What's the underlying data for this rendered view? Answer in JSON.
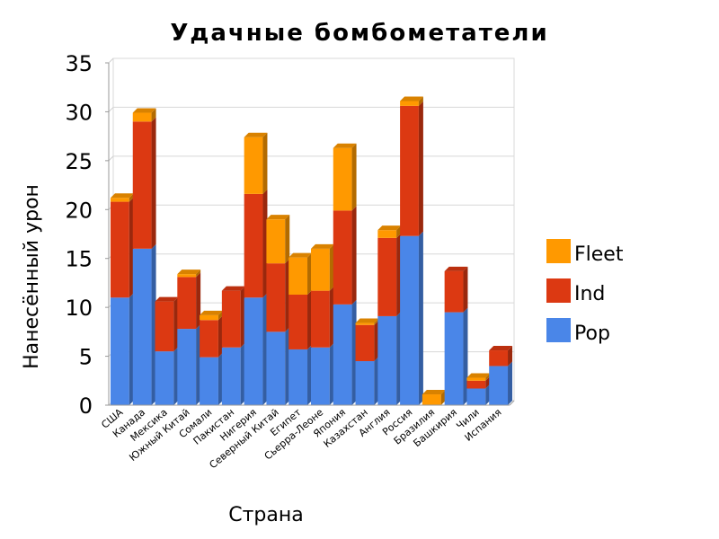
{
  "chart_data": {
    "type": "bar",
    "stacked": true,
    "title": "Удачные бомбометатели",
    "xlabel": "Страна",
    "ylabel": "Нанесённый урон",
    "ylim": [
      0,
      35
    ],
    "yticks": [
      0,
      5,
      10,
      15,
      20,
      25,
      30,
      35
    ],
    "grid": true,
    "legend_position": "right",
    "categories": [
      "США",
      "Канада",
      "Мексика",
      "Южный Китай",
      "Сомали",
      "Пакистан",
      "Нигерия",
      "Северный Китай",
      "Египет",
      "Сьерра-Леоне",
      "Япония",
      "Казахстан",
      "Англия",
      "Россия",
      "Бразилия",
      "Башкирия",
      "Чили",
      "Испания"
    ],
    "series": [
      {
        "name": "Pop",
        "color": "#4a86e8",
        "values": [
          11,
          16,
          5.5,
          7.8,
          4.9,
          5.9,
          11,
          7.5,
          5.7,
          5.9,
          10.3,
          4.5,
          9.1,
          17.3,
          0,
          9.5,
          1.7,
          4
        ]
      },
      {
        "name": "Ind",
        "color": "#dc3912",
        "values": [
          9.8,
          13,
          5.1,
          5.3,
          3.8,
          5.8,
          10.6,
          7,
          5.6,
          5.8,
          9.6,
          3.7,
          8,
          13.3,
          0,
          4.2,
          0.8,
          1.6
        ]
      },
      {
        "name": "Fleet",
        "color": "#ff9900",
        "values": [
          0.4,
          0.9,
          0,
          0.3,
          0.5,
          0,
          5.8,
          4.5,
          3.8,
          4.3,
          6.4,
          0.2,
          0.8,
          0.5,
          1.1,
          0,
          0.3,
          0
        ]
      }
    ]
  }
}
